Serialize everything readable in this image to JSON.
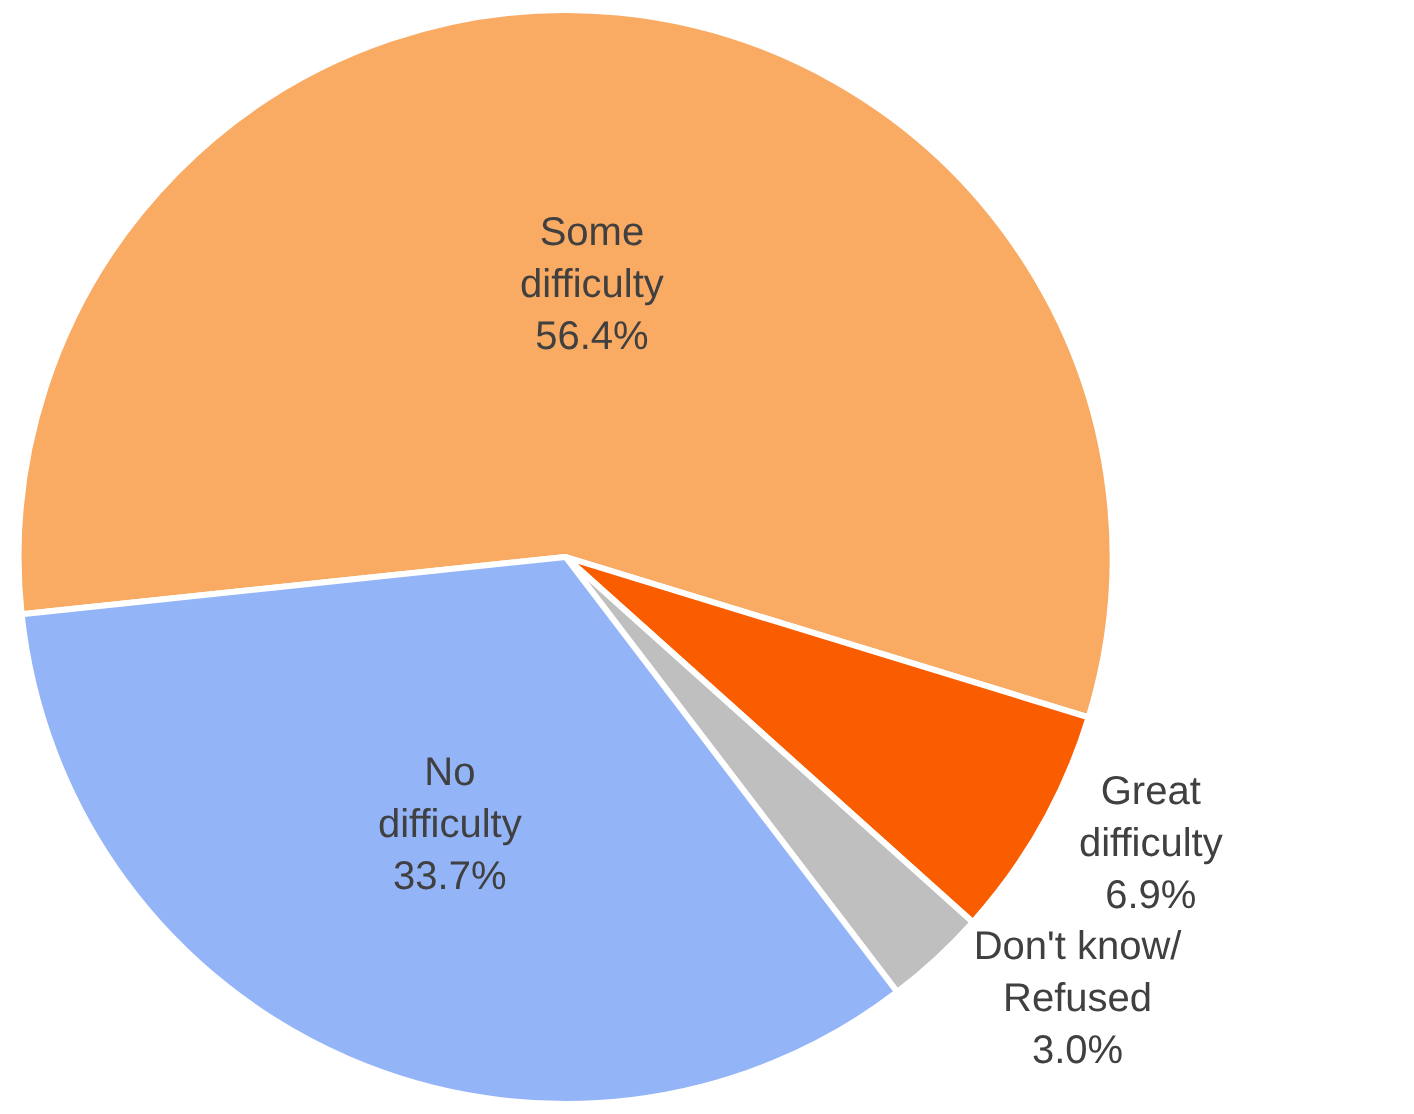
{
  "chart_data": {
    "type": "pie",
    "categories": [
      "Some difficulty",
      "Great difficulty",
      "Don't know/Refused",
      "No difficulty"
    ],
    "values": [
      56.4,
      6.9,
      3.0,
      33.7
    ],
    "colors": [
      "#f9aa63",
      "#fa5c00",
      "#bfbfbf",
      "#94b4f8"
    ],
    "value_labels": [
      "56.4%",
      "6.9%",
      "3.0%",
      "33.7%"
    ]
  }
}
